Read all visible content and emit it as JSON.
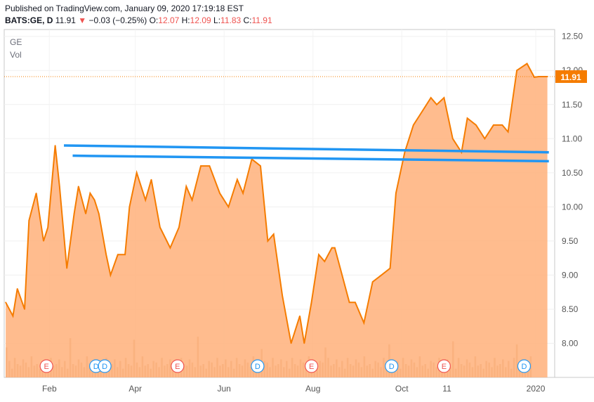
{
  "header": {
    "published": "Published on TradingView.com, January 09, 2020 17:19:18 EST",
    "ticker": "BATS:GE, D",
    "last": "11.91",
    "arrow": "▼",
    "change": "−0.03 (−0.25%)",
    "o_label": "O:",
    "o_val": "12.07",
    "h_label": "H:",
    "h_val": "12.09",
    "l_label": "L:",
    "l_val": "11.83",
    "c_label": "C:",
    "c_val": "11.91"
  },
  "legend": {
    "symbol": "GE",
    "vol": "Vol"
  },
  "colors": {
    "line": "#f57c00",
    "fill": "#ffb07a",
    "trendline": "#2196f3",
    "event_earnings": "#ef5350",
    "event_dividend": "#2196f3",
    "price_badge": "#f57c00",
    "volume": "#d4a07a"
  },
  "chart_data": {
    "type": "area",
    "title": "",
    "xlabel": "",
    "ylabel": "",
    "ylim": [
      7.5,
      12.6
    ],
    "y_ticks": [
      "12.50",
      "12.00",
      "11.50",
      "11.00",
      "10.50",
      "10.00",
      "9.50",
      "9.00",
      "8.50",
      "8.00"
    ],
    "y_tick_values": [
      12.5,
      12.0,
      11.5,
      11.0,
      10.5,
      10.0,
      9.5,
      9.0,
      8.5,
      8.0
    ],
    "x_ticks": [
      "Feb",
      "Apr",
      "Jun",
      "Aug",
      "Oct",
      "11",
      "2020"
    ],
    "x_tick_dates": [
      "2019-02-01",
      "2019-04-01",
      "2019-06-01",
      "2019-08-01",
      "2019-10-01",
      "2019-11-01",
      "2020-01-01"
    ],
    "last_price_label": "11.91",
    "last_price": 11.91,
    "series": [
      {
        "x": [
          "2019-01-02",
          "2019-01-07",
          "2019-01-10",
          "2019-01-15",
          "2019-01-18",
          "2019-01-23",
          "2019-01-28",
          "2019-01-31",
          "2019-02-05",
          "2019-02-08",
          "2019-02-13",
          "2019-02-18",
          "2019-02-21",
          "2019-02-26",
          "2019-03-01",
          "2019-03-04",
          "2019-03-07",
          "2019-03-12",
          "2019-03-15",
          "2019-03-20",
          "2019-03-25",
          "2019-03-28",
          "2019-04-02",
          "2019-04-08",
          "2019-04-12",
          "2019-04-18",
          "2019-04-25",
          "2019-05-01",
          "2019-05-06",
          "2019-05-10",
          "2019-05-16",
          "2019-05-22",
          "2019-05-29",
          "2019-06-04",
          "2019-06-10",
          "2019-06-14",
          "2019-06-20",
          "2019-06-26",
          "2019-07-01",
          "2019-07-05",
          "2019-07-11",
          "2019-07-17",
          "2019-07-23",
          "2019-07-26",
          "2019-07-31",
          "2019-08-05",
          "2019-08-09",
          "2019-08-14",
          "2019-08-16",
          "2019-08-21",
          "2019-08-26",
          "2019-08-30",
          "2019-09-05",
          "2019-09-11",
          "2019-09-17",
          "2019-09-23",
          "2019-09-27",
          "2019-10-03",
          "2019-10-09",
          "2019-10-15",
          "2019-10-21",
          "2019-10-25",
          "2019-10-30",
          "2019-11-05",
          "2019-11-11",
          "2019-11-15",
          "2019-11-21",
          "2019-11-27",
          "2019-12-03",
          "2019-12-09",
          "2019-12-13",
          "2019-12-19",
          "2019-12-26",
          "2019-12-31",
          "2020-01-03",
          "2020-01-07",
          "2020-01-09"
        ],
        "y": [
          8.6,
          8.4,
          8.8,
          8.5,
          9.8,
          10.2,
          9.5,
          9.7,
          10.9,
          10.3,
          9.1,
          9.9,
          10.3,
          9.9,
          10.2,
          10.1,
          9.9,
          9.3,
          9.0,
          9.3,
          9.3,
          10.0,
          10.5,
          10.1,
          10.4,
          9.7,
          9.4,
          9.7,
          10.3,
          10.1,
          10.6,
          10.6,
          10.2,
          10.0,
          10.4,
          10.2,
          10.7,
          10.6,
          9.5,
          9.6,
          8.7,
          8.0,
          8.4,
          8.0,
          8.6,
          9.3,
          9.2,
          9.4,
          9.4,
          9.0,
          8.6,
          8.6,
          8.3,
          8.9,
          9.0,
          9.1,
          10.2,
          10.8,
          11.2,
          11.4,
          11.6,
          11.5,
          11.6,
          11.0,
          10.8,
          11.3,
          11.2,
          11.0,
          11.2,
          11.2,
          11.1,
          12.0,
          12.1,
          11.9,
          11.91,
          11.91,
          11.91
        ]
      }
    ],
    "trendlines": [
      {
        "x": [
          "2019-02-11",
          "2020-01-10"
        ],
        "y": [
          10.9,
          10.8
        ]
      },
      {
        "x": [
          "2019-02-17",
          "2020-01-10"
        ],
        "y": [
          10.75,
          10.67
        ]
      }
    ],
    "events": [
      {
        "type": "E",
        "date": "2019-01-30"
      },
      {
        "type": "D",
        "date": "2019-03-05"
      },
      {
        "type": "D",
        "date": "2019-03-11"
      },
      {
        "type": "E",
        "date": "2019-04-30"
      },
      {
        "type": "D",
        "date": "2019-06-24"
      },
      {
        "type": "E",
        "date": "2019-07-31"
      },
      {
        "type": "D",
        "date": "2019-09-24"
      },
      {
        "type": "E",
        "date": "2019-10-30"
      },
      {
        "type": "D",
        "date": "2019-12-24"
      }
    ]
  }
}
